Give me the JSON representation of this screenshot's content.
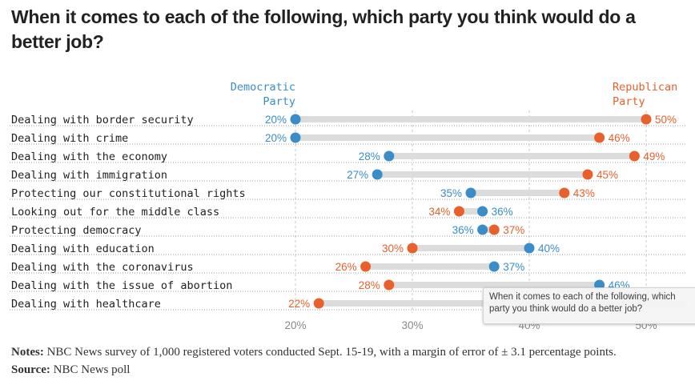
{
  "title": "When it comes to each of the following, which party you think would do a better job?",
  "notes": {
    "notes_label": "Notes:",
    "notes_text": " NBC News survey of 1,000 registered voters conducted Sept. 15-19, with a margin of error of ± 3.1 percentage points.",
    "source_label": "Source:",
    "source_text": " NBC News poll"
  },
  "tooltip": "When it comes to each of the following, which party you think would do a better job?",
  "chart_data": {
    "type": "dot-range",
    "series": [
      {
        "name": "Democratic Party",
        "label_lines": [
          "Democratic",
          "Party"
        ],
        "color": "#3a8dc8"
      },
      {
        "name": "Republican Party",
        "label_lines": [
          "Republican",
          "Party"
        ],
        "color": "#e8602c"
      }
    ],
    "categories": [
      "Dealing with border security",
      "Dealing with crime",
      "Dealing with the economy",
      "Dealing with immigration",
      "Protecting our constitutional rights",
      "Looking out for the middle class",
      "Protecting democracy",
      "Dealing with education",
      "Dealing with the coronavirus",
      "Dealing with the issue of abortion",
      "Dealing with healthcare"
    ],
    "democratic": [
      20,
      20,
      28,
      27,
      35,
      36,
      36,
      40,
      37,
      46,
      null
    ],
    "republican": [
      50,
      46,
      49,
      45,
      43,
      34,
      37,
      30,
      26,
      28,
      22
    ],
    "xlim": [
      20,
      50
    ],
    "xticks": [
      20,
      30,
      40,
      50
    ],
    "tick_suffix": "%",
    "grid": true
  }
}
